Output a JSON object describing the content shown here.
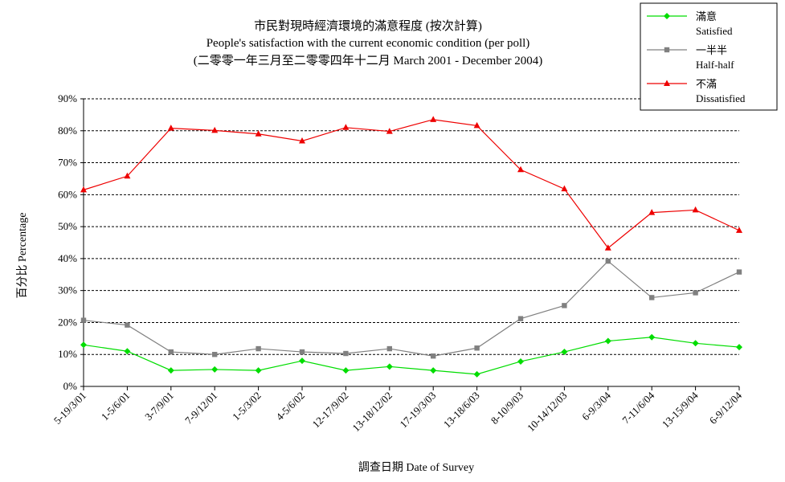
{
  "chart_data": {
    "type": "line",
    "title": "市民對現時經濟環境的滿意程度 (按次計算)",
    "subtitle": "People's satisfaction with the current economic condition  (per poll)",
    "subtitle2": "(二零零一年三月至二零零四年十二月 March 2001 - December 2004)",
    "xlabel": "調查日期 Date of Survey",
    "ylabel": "百分比 Percentage",
    "ylim": [
      0,
      90
    ],
    "yticks": [
      "0%",
      "10%",
      "20%",
      "30%",
      "40%",
      "50%",
      "60%",
      "70%",
      "80%",
      "90%"
    ],
    "grid": "horizontal-dashed",
    "legend_position": "top-right",
    "categories": [
      "5-19/3/01",
      "1-5/6/01",
      "3-7/9/01",
      "7-9/12/01",
      "1-5/3/02",
      "4-5/6/02",
      "12-17/9/02",
      "13-18/12/02",
      "17-19/3/03",
      "13-18/6/03",
      "8-10/9/03",
      "10-14/12/03",
      "6-9/3/04",
      "7-11/6/04",
      "13-15/9/04",
      "6-9/12/04"
    ],
    "series": [
      {
        "name": "滿意",
        "name_en": "Satisfied",
        "color": "#00dd00",
        "marker": "diamond",
        "values": [
          13,
          11,
          5,
          5.3,
          5,
          8,
          5,
          6.2,
          5,
          3.8,
          7.8,
          10.8,
          14.2,
          15.4,
          13.5,
          12.3
        ]
      },
      {
        "name": "一半半",
        "name_en": "Half-half",
        "color": "#808080",
        "marker": "square",
        "values": [
          20.7,
          19.2,
          10.8,
          10,
          11.8,
          10.8,
          10.3,
          11.8,
          9.5,
          12,
          21.2,
          25.3,
          39.2,
          27.8,
          29.3,
          35.8
        ]
      },
      {
        "name": "不滿",
        "name_en": "Dissatisfied",
        "color": "#ee0000",
        "marker": "triangle",
        "values": [
          61.5,
          65.8,
          80.8,
          80.1,
          79,
          76.8,
          81,
          79.8,
          83.5,
          81.6,
          67.8,
          61.8,
          43.3,
          54.4,
          55.2,
          48.8
        ]
      }
    ]
  }
}
